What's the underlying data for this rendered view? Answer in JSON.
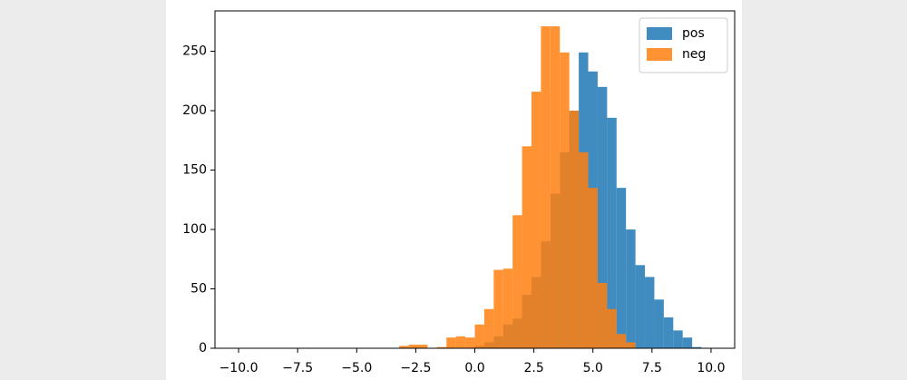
{
  "chart_data": {
    "type": "histogram",
    "series": [
      {
        "name": "pos",
        "color": "#1f77b4",
        "bins": [
          0.0,
          0.4,
          0.8,
          1.2,
          1.6,
          2.0,
          2.4,
          2.8,
          3.2,
          3.6,
          4.0,
          4.4,
          4.8,
          5.2,
          5.6,
          6.0,
          6.4,
          6.8,
          7.2,
          7.6,
          8.0,
          8.4,
          8.8,
          9.2,
          9.6
        ],
        "values": [
          2,
          5,
          10,
          20,
          25,
          45,
          60,
          90,
          130,
          165,
          200,
          249,
          233,
          220,
          194,
          135,
          100,
          70,
          60,
          41,
          26,
          15,
          9,
          1
        ]
      },
      {
        "name": "neg",
        "color": "#ff7f0e",
        "bins": [
          -3.2,
          -2.8,
          -2.4,
          -2.0,
          -1.6,
          -1.2,
          -0.8,
          -0.4,
          0.0,
          0.4,
          0.8,
          1.2,
          1.6,
          2.0,
          2.4,
          2.8,
          3.2,
          3.6,
          4.0,
          4.4,
          4.8,
          5.2,
          5.6,
          6.0,
          6.4,
          6.8,
          7.2
        ],
        "values": [
          2,
          3,
          3,
          0,
          1,
          9,
          10,
          9,
          20,
          33,
          66,
          67,
          112,
          170,
          216,
          271,
          271,
          249,
          200,
          165,
          135,
          55,
          33,
          12,
          5,
          0
        ]
      }
    ],
    "xlim": [
      -11,
      11
    ],
    "ylim": [
      0,
      284
    ],
    "xticks": [
      {
        "value": -10,
        "label": "−10.0"
      },
      {
        "value": -7.5,
        "label": "−7.5"
      },
      {
        "value": -5,
        "label": "−5.0"
      },
      {
        "value": -2.5,
        "label": "−2.5"
      },
      {
        "value": 0,
        "label": "0.0"
      },
      {
        "value": 2.5,
        "label": "2.5"
      },
      {
        "value": 5,
        "label": "5.0"
      },
      {
        "value": 7.5,
        "label": "7.5"
      },
      {
        "value": 10,
        "label": "10.0"
      }
    ],
    "yticks": [
      0,
      50,
      100,
      150,
      200,
      250
    ],
    "legend": "upper right"
  }
}
